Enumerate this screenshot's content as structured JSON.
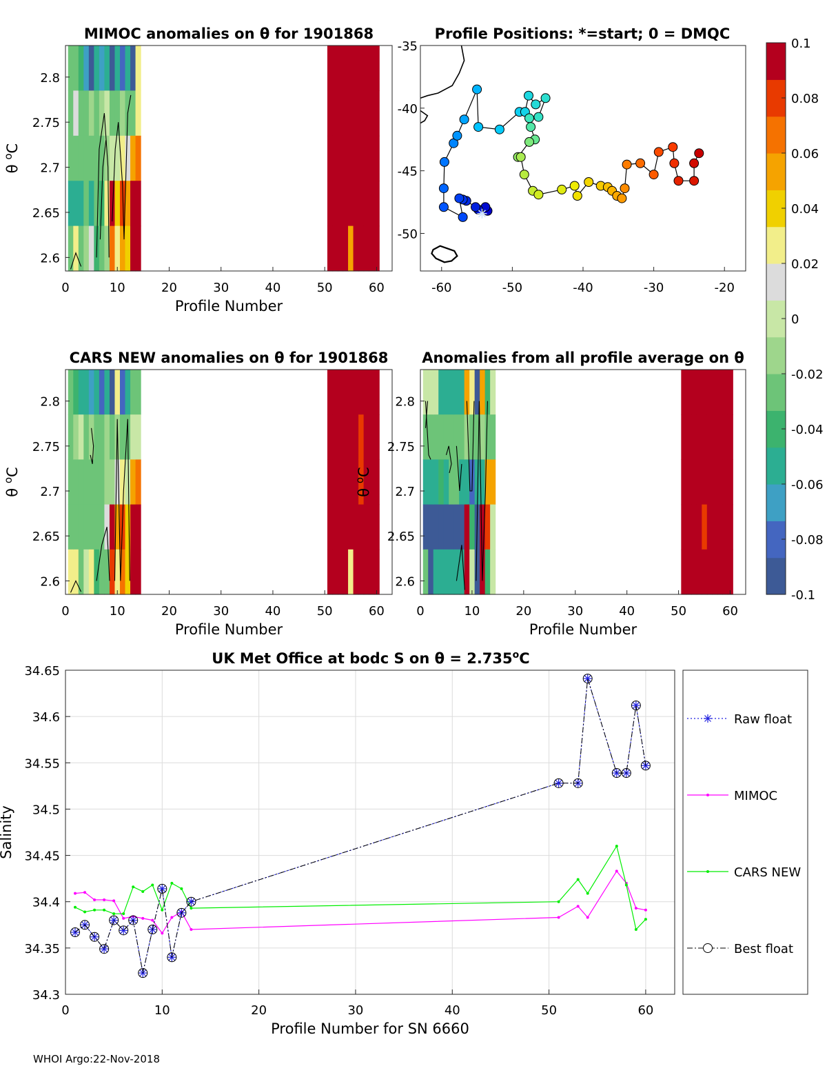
{
  "footer": "WHOI Argo:22-Nov-2018",
  "chart_data": [
    {
      "type": "heatmap",
      "title": "MIMOC anomalies on θ  for 1901868",
      "xlabel": "Profile Number",
      "ylabel": "θ °C",
      "xlim": [
        0,
        63
      ],
      "ylim": [
        2.585,
        2.835
      ],
      "xticks": [
        0,
        10,
        20,
        30,
        40,
        50,
        60
      ],
      "yticks": [
        2.6,
        2.65,
        2.7,
        2.75,
        2.8
      ],
      "ytick_labels": [
        "2.6",
        "2.65",
        "2.7",
        "2.75",
        "2.8"
      ],
      "theta_levels": [
        2.835,
        2.785,
        2.735,
        2.685,
        2.635,
        2.585
      ],
      "columns": {
        "1": [
          -0.03,
          -0.02,
          -0.03,
          -0.05,
          -0.02
        ],
        "2": [
          -0.03,
          0.01,
          -0.02,
          -0.05,
          0.02
        ],
        "3": [
          -0.04,
          -0.02,
          -0.03,
          -0.05,
          -0.03
        ],
        "4": [
          -0.07,
          -0.03,
          -0.03,
          -0.03,
          -0.01
        ],
        "5": [
          -0.09,
          -0.01,
          -0.02,
          -0.05,
          0.01
        ],
        "6": [
          -0.06,
          -0.03,
          -0.03,
          -0.02,
          -0.04
        ],
        "7": [
          -0.07,
          -0.01,
          -0.02,
          -0.04,
          -0.02
        ],
        "8": [
          -0.05,
          0.0,
          -0.01,
          0.02,
          -0.01
        ],
        "9": [
          -0.09,
          -0.03,
          0.0,
          0.1,
          0.07
        ],
        "10": [
          -0.05,
          -0.02,
          0.0,
          0.04,
          0.02
        ],
        "11": [
          -0.08,
          -0.01,
          0.02,
          0.08,
          0.06
        ],
        "12": [
          -0.06,
          -0.03,
          0.01,
          0.06,
          0.04
        ],
        "13": [
          -0.09,
          -0.02,
          0.06,
          0.1,
          0.1
        ],
        "14": [
          0.03,
          0.03,
          0.07,
          0.1,
          0.1
        ],
        "51": [
          0.1,
          0.1,
          0.1,
          0.1,
          0.1
        ],
        "52": [
          0.1,
          0.1,
          0.1,
          0.1,
          0.1
        ],
        "53": [
          0.1,
          0.1,
          0.1,
          0.1,
          0.1
        ],
        "54": [
          0.1,
          0.1,
          0.1,
          0.1,
          0.1
        ],
        "55": [
          0.1,
          0.1,
          0.1,
          0.1,
          0.06
        ],
        "56": [
          0.1,
          0.1,
          0.1,
          0.1,
          0.1
        ],
        "57": [
          0.1,
          0.1,
          0.1,
          0.1,
          0.1
        ],
        "58": [
          0.1,
          0.1,
          0.1,
          0.1,
          0.1
        ],
        "59": [
          0.1,
          0.1,
          0.1,
          0.1,
          0.1
        ],
        "60": [
          0.1,
          0.1,
          0.1,
          0.1,
          0.1
        ]
      }
    },
    {
      "type": "scatter",
      "title": "Profile Positions: *=start; 0 = DMQC",
      "xlim": [
        -63,
        -17
      ],
      "ylim": [
        -53,
        -35
      ],
      "xticks": [
        -60,
        -50,
        -40,
        -30,
        -20
      ],
      "yticks": [
        -35,
        -40,
        -45,
        -50
      ],
      "start_marker": "*",
      "track": [
        [
          -53.5,
          -48.2
        ],
        [
          -53.8,
          -47.9
        ],
        [
          -54.8,
          -48.1
        ],
        [
          -55.2,
          -47.9
        ],
        [
          -56.5,
          -47.4
        ],
        [
          -57.0,
          -47.3
        ],
        [
          -57.5,
          -47.2
        ],
        [
          -57.0,
          -48.7
        ],
        [
          -59.7,
          -47.9
        ],
        [
          -59.7,
          -46.4
        ],
        [
          -59.6,
          -44.3
        ],
        [
          -58.3,
          -42.8
        ],
        [
          -57.8,
          -42.2
        ],
        [
          -56.8,
          -40.9
        ],
        [
          -55.0,
          -38.5
        ],
        [
          -54.8,
          -41.5
        ],
        [
          -51.8,
          -41.7
        ],
        [
          -49.0,
          -40.3
        ],
        [
          -48.2,
          -40.3
        ],
        [
          -47.7,
          -39.0
        ],
        [
          -46.7,
          -39.7
        ],
        [
          -45.3,
          -39.2
        ],
        [
          -46.3,
          -40.7
        ],
        [
          -47.6,
          -40.8
        ],
        [
          -47.4,
          -41.5
        ],
        [
          -46.8,
          -42.5
        ],
        [
          -47.6,
          -42.7
        ],
        [
          -49.2,
          -43.9
        ],
        [
          -48.8,
          -43.9
        ],
        [
          -48.3,
          -45.3
        ],
        [
          -47.1,
          -46.6
        ],
        [
          -46.3,
          -46.9
        ],
        [
          -43.0,
          -46.5
        ],
        [
          -41.2,
          -46.2
        ],
        [
          -40.8,
          -47.0
        ],
        [
          -39.2,
          -45.9
        ],
        [
          -37.5,
          -46.2
        ],
        [
          -36.5,
          -46.3
        ],
        [
          -35.9,
          -46.6
        ],
        [
          -35.2,
          -47.0
        ],
        [
          -34.5,
          -47.2
        ],
        [
          -34.1,
          -46.4
        ],
        [
          -33.8,
          -44.5
        ],
        [
          -31.9,
          -44.4
        ],
        [
          -30.0,
          -45.3
        ],
        [
          -29.3,
          -43.5
        ],
        [
          -27.3,
          -43.1
        ],
        [
          -27.1,
          -44.4
        ],
        [
          -26.5,
          -45.8
        ],
        [
          -24.3,
          -45.8
        ],
        [
          -24.3,
          -44.4
        ],
        [
          -23.6,
          -43.6
        ]
      ]
    },
    {
      "type": "heatmap",
      "title": "CARS NEW anomalies on θ for 1901868",
      "xlabel": "Profile Number",
      "ylabel": "θ °C",
      "xlim": [
        0,
        63
      ],
      "ylim": [
        2.585,
        2.835
      ],
      "xticks": [
        0,
        10,
        20,
        30,
        40,
        50,
        60
      ],
      "yticks": [
        2.6,
        2.65,
        2.7,
        2.75,
        2.8
      ],
      "ytick_labels": [
        "2.6",
        "2.65",
        "2.7",
        "2.75",
        "2.8"
      ],
      "theta_levels": [
        2.835,
        2.785,
        2.735,
        2.685,
        2.635,
        2.585
      ],
      "columns": {
        "1": [
          -0.03,
          -0.02,
          -0.02,
          -0.03,
          0.02
        ],
        "2": [
          -0.04,
          -0.01,
          -0.02,
          -0.03,
          0.03
        ],
        "3": [
          -0.05,
          0.0,
          -0.02,
          -0.02,
          -0.02
        ],
        "4": [
          -0.06,
          -0.02,
          -0.02,
          -0.02,
          0.0
        ],
        "5": [
          -0.07,
          -0.01,
          -0.02,
          -0.03,
          0.02
        ],
        "6": [
          -0.06,
          -0.02,
          -0.03,
          -0.02,
          -0.04
        ],
        "7": [
          -0.08,
          -0.03,
          -0.02,
          -0.03,
          -0.02
        ],
        "8": [
          -0.06,
          -0.01,
          -0.01,
          0.01,
          -0.03
        ],
        "9": [
          -0.09,
          -0.03,
          -0.01,
          0.1,
          0.08
        ],
        "10": [
          0.03,
          -0.01,
          0.01,
          0.05,
          0.02
        ],
        "11": [
          -0.08,
          -0.02,
          0.02,
          0.08,
          0.07
        ],
        "12": [
          -0.06,
          -0.02,
          0.0,
          0.04,
          0.04
        ],
        "13": [
          -0.03,
          0.0,
          0.06,
          0.1,
          0.1
        ],
        "14": [
          -0.03,
          0.0,
          0.07,
          0.1,
          0.1
        ],
        "51": [
          0.1,
          0.1,
          0.1,
          0.1,
          0.1
        ],
        "52": [
          0.1,
          0.1,
          0.1,
          0.1,
          0.1
        ],
        "53": [
          0.1,
          0.1,
          0.1,
          0.1,
          0.1
        ],
        "54": [
          0.1,
          0.1,
          0.1,
          0.1,
          0.1
        ],
        "55": [
          0.1,
          0.1,
          0.1,
          0.1,
          0.03
        ],
        "56": [
          0.1,
          0.1,
          0.1,
          0.1,
          0.1
        ],
        "57": [
          0.1,
          0.08,
          0.08,
          0.1,
          0.1
        ],
        "58": [
          0.1,
          0.1,
          0.1,
          0.1,
          0.1
        ],
        "59": [
          0.1,
          0.1,
          0.1,
          0.1,
          0.1
        ],
        "60": [
          0.1,
          0.1,
          0.1,
          0.1,
          0.1
        ]
      }
    },
    {
      "type": "heatmap",
      "title": "Anomalies from all profile average on θ",
      "xlabel": "Profile Number",
      "ylabel": "θ °C",
      "xlim": [
        0,
        63
      ],
      "ylim": [
        2.585,
        2.835
      ],
      "xticks": [
        0,
        10,
        20,
        30,
        40,
        50,
        60
      ],
      "yticks": [
        2.6,
        2.65,
        2.7,
        2.75,
        2.8
      ],
      "ytick_labels": [
        "2.6",
        "2.65",
        "2.7",
        "2.75",
        "2.8"
      ],
      "theta_levels": [
        2.835,
        2.785,
        2.735,
        2.685,
        2.635,
        2.585
      ],
      "columns": {
        "1": [
          0.0,
          -0.03,
          -0.05,
          -0.09,
          -0.02
        ],
        "2": [
          0.0,
          -0.03,
          -0.05,
          -0.09,
          -0.09
        ],
        "3": [
          0.0,
          -0.02,
          -0.05,
          -0.09,
          -0.05
        ],
        "4": [
          -0.05,
          -0.03,
          -0.04,
          -0.09,
          -0.05
        ],
        "5": [
          -0.06,
          -0.02,
          -0.05,
          -0.09,
          -0.06
        ],
        "6": [
          -0.05,
          -0.03,
          -0.03,
          -0.09,
          -0.06
        ],
        "7": [
          -0.06,
          -0.02,
          -0.03,
          -0.09,
          -0.06
        ],
        "8": [
          -0.05,
          -0.03,
          -0.05,
          -0.09,
          -0.06
        ],
        "9": [
          0.05,
          -0.01,
          -0.06,
          0.1,
          0.1
        ],
        "10": [
          0.03,
          -0.03,
          -0.08,
          -0.04,
          0.0
        ],
        "11": [
          -0.09,
          -0.02,
          -0.05,
          -0.09,
          -0.09
        ],
        "12": [
          0.06,
          -0.01,
          -0.06,
          0.1,
          0.1
        ],
        "13": [
          -0.04,
          -0.02,
          0.05,
          0.08,
          -0.04
        ],
        "14": [
          0.0,
          -0.02,
          0.06,
          0.0,
          0.0
        ],
        "51": [
          0.1,
          0.1,
          0.1,
          0.1,
          0.1
        ],
        "52": [
          0.1,
          0.1,
          0.1,
          0.1,
          0.1
        ],
        "53": [
          0.1,
          0.1,
          0.1,
          0.1,
          0.1
        ],
        "54": [
          0.1,
          0.1,
          0.1,
          0.1,
          0.1
        ],
        "55": [
          0.1,
          0.1,
          0.1,
          0.08,
          0.1
        ],
        "56": [
          0.1,
          0.1,
          0.1,
          0.1,
          0.1
        ],
        "57": [
          0.1,
          0.1,
          0.1,
          0.1,
          0.1
        ],
        "58": [
          0.1,
          0.1,
          0.1,
          0.1,
          0.1
        ],
        "59": [
          0.1,
          0.1,
          0.1,
          0.1,
          0.1
        ],
        "60": [
          0.1,
          0.1,
          0.1,
          0.1,
          0.1
        ]
      }
    },
    {
      "type": "line",
      "title": "UK Met Office at bodc S on θ = 2.735°C",
      "xlabel": "Profile Number for SN 6660",
      "ylabel": "Salinity",
      "xlim": [
        0,
        63
      ],
      "ylim": [
        34.3,
        34.65
      ],
      "xticks": [
        0,
        10,
        20,
        30,
        40,
        50,
        60
      ],
      "yticks": [
        34.3,
        34.35,
        34.4,
        34.45,
        34.5,
        34.55,
        34.6,
        34.65
      ],
      "ytick_labels": [
        "34.3",
        "34.35",
        "34.4",
        "34.45",
        "34.5",
        "34.55",
        "34.6",
        "34.65"
      ],
      "grid": true,
      "legend": "outside-right",
      "series": [
        {
          "name": "Raw float",
          "color": "#1f1fe0",
          "x": [
            1,
            2,
            3,
            4,
            5,
            6,
            7,
            8,
            9,
            10,
            11,
            12,
            13,
            51,
            53,
            54,
            57,
            58,
            59,
            60
          ],
          "values": [
            34.367,
            34.375,
            34.362,
            34.349,
            34.38,
            34.369,
            34.38,
            34.323,
            34.37,
            34.414,
            34.34,
            34.388,
            34.4,
            34.528,
            34.528,
            34.641,
            34.539,
            34.539,
            34.612,
            34.547
          ]
        },
        {
          "name": "MIMOC",
          "color": "#ff00ff",
          "x": [
            1,
            2,
            3,
            4,
            5,
            6,
            7,
            8,
            9,
            10,
            11,
            12,
            13,
            51,
            53,
            54,
            57,
            58,
            59,
            60
          ],
          "values": [
            34.409,
            34.41,
            34.402,
            34.402,
            34.401,
            34.382,
            34.384,
            34.382,
            34.38,
            34.366,
            34.383,
            34.389,
            34.37,
            34.383,
            34.395,
            34.383,
            34.433,
            34.42,
            34.393,
            34.391
          ]
        },
        {
          "name": "CARS NEW",
          "color": "#00ee00",
          "x": [
            1,
            2,
            3,
            4,
            5,
            6,
            7,
            8,
            9,
            10,
            11,
            12,
            13,
            51,
            53,
            54,
            57,
            58,
            59,
            60
          ],
          "values": [
            34.394,
            34.389,
            34.391,
            34.391,
            34.387,
            34.387,
            34.416,
            34.411,
            34.418,
            34.391,
            34.42,
            34.414,
            34.393,
            34.4,
            34.424,
            34.409,
            34.46,
            34.418,
            34.37,
            34.381
          ]
        },
        {
          "name": "Best float",
          "color": "#000000",
          "x": [
            1,
            2,
            3,
            4,
            5,
            6,
            7,
            8,
            9,
            10,
            11,
            12,
            13,
            51,
            53,
            54,
            57,
            58,
            59,
            60
          ],
          "values": [
            34.367,
            34.375,
            34.362,
            34.349,
            34.38,
            34.369,
            34.38,
            34.323,
            34.37,
            34.414,
            34.34,
            34.388,
            34.4,
            34.528,
            34.528,
            34.641,
            34.539,
            34.539,
            34.612,
            34.547
          ]
        }
      ]
    },
    {
      "type": "colorbar",
      "range": [
        -0.1,
        0.1
      ],
      "ticks": [
        0.1,
        0.08,
        0.06,
        0.04,
        0.02,
        0,
        -0.02,
        -0.04,
        -0.06,
        -0.08,
        -0.1
      ],
      "tick_labels": [
        "0.1",
        "0.08",
        "0.06",
        "0.04",
        "0.02",
        "0",
        "-0.02",
        "-0.04",
        "-0.06",
        "-0.08",
        "-0.1"
      ],
      "colors": [
        "#3d5a96",
        "#4466c0",
        "#3ea0c4",
        "#2cae92",
        "#3cb36e",
        "#6dc478",
        "#9ed68c",
        "#c8e7a6",
        "#dcdcdc",
        "#f2ee8a",
        "#f0d000",
        "#f5a300",
        "#f57200",
        "#e83a00",
        "#b4001e"
      ]
    }
  ]
}
